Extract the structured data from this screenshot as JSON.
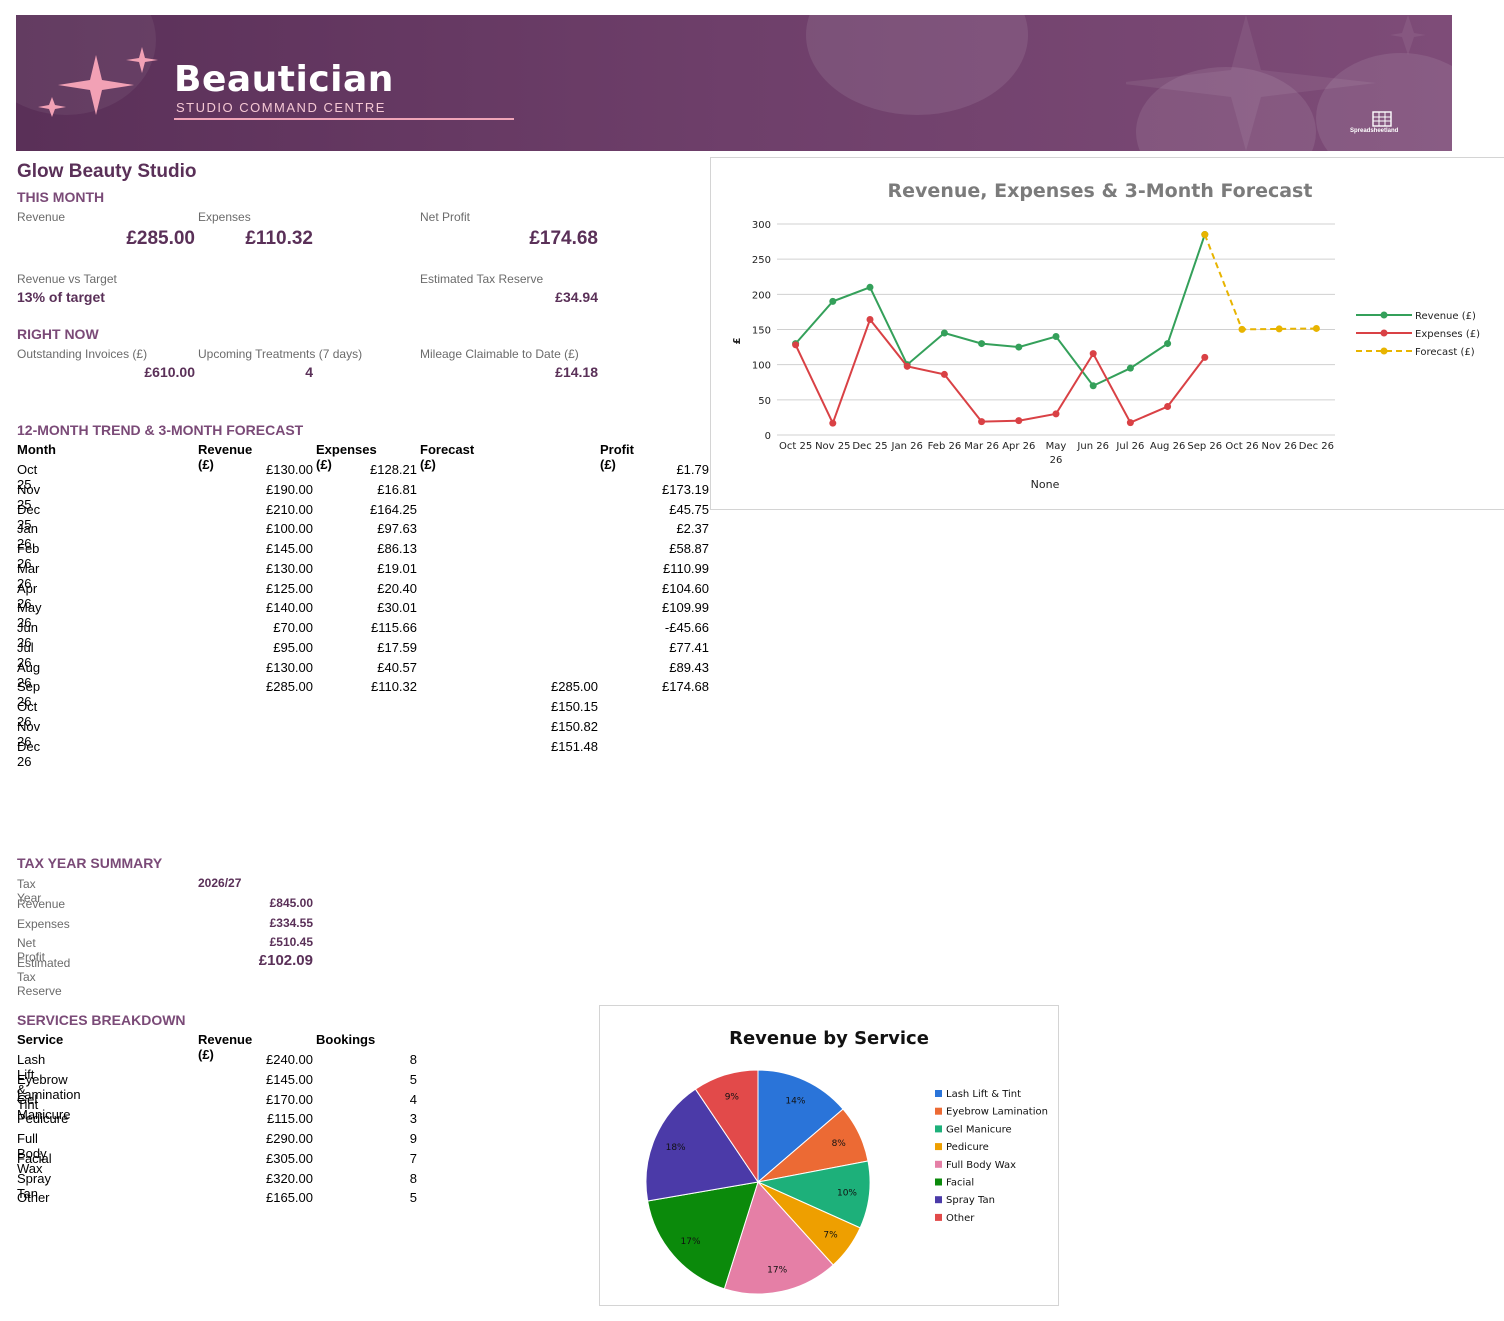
{
  "banner": {
    "title": "Beautician",
    "subtitle": "STUDIO COMMAND CENTRE",
    "logo_text": "Spreadsheetland"
  },
  "studio_name": "Glow Beauty Studio",
  "this_month": {
    "heading": "THIS MONTH",
    "revenue_label": "Revenue",
    "revenue": "£285.00",
    "expenses_label": "Expenses",
    "expenses": "£110.32",
    "net_profit_label": "Net Profit",
    "net_profit": "£174.68",
    "vs_target_label": "Revenue vs Target",
    "vs_target": "13% of target",
    "tax_reserve_label": "Estimated Tax Reserve",
    "tax_reserve": "£34.94"
  },
  "right_now": {
    "heading": "RIGHT NOW",
    "invoices_label": "Outstanding Invoices (£)",
    "invoices": "£610.00",
    "treatments_label": "Upcoming Treatments (7 days)",
    "treatments": "4",
    "mileage_label": "Mileage Claimable to Date (£)",
    "mileage": "£14.18"
  },
  "trend": {
    "heading": "12-MONTH TREND & 3-MONTH FORECAST",
    "columns": [
      "Month",
      "Revenue (£)",
      "Expenses (£)",
      "Forecast (£)",
      "Profit (£)"
    ],
    "rows": [
      [
        "Oct 25",
        "£130.00",
        "£128.21",
        "",
        "£1.79"
      ],
      [
        "Nov 25",
        "£190.00",
        "£16.81",
        "",
        "£173.19"
      ],
      [
        "Dec 25",
        "£210.00",
        "£164.25",
        "",
        "£45.75"
      ],
      [
        "Jan 26",
        "£100.00",
        "£97.63",
        "",
        "£2.37"
      ],
      [
        "Feb 26",
        "£145.00",
        "£86.13",
        "",
        "£58.87"
      ],
      [
        "Mar 26",
        "£130.00",
        "£19.01",
        "",
        "£110.99"
      ],
      [
        "Apr 26",
        "£125.00",
        "£20.40",
        "",
        "£104.60"
      ],
      [
        "May 26",
        "£140.00",
        "£30.01",
        "",
        "£109.99"
      ],
      [
        "Jun 26",
        "£70.00",
        "£115.66",
        "",
        "-£45.66"
      ],
      [
        "Jul 26",
        "£95.00",
        "£17.59",
        "",
        "£77.41"
      ],
      [
        "Aug 26",
        "£130.00",
        "£40.57",
        "",
        "£89.43"
      ],
      [
        "Sep 26",
        "£285.00",
        "£110.32",
        "£285.00",
        "£174.68"
      ],
      [
        "Oct 26",
        "",
        "",
        "£150.15",
        ""
      ],
      [
        "Nov 26",
        "",
        "",
        "£150.82",
        ""
      ],
      [
        "Dec 26",
        "",
        "",
        "£151.48",
        ""
      ]
    ]
  },
  "tax_year": {
    "heading": "TAX YEAR SUMMARY",
    "rows": [
      {
        "label": "Tax Year",
        "value": "2026/27"
      },
      {
        "label": "Revenue",
        "value": "£845.00"
      },
      {
        "label": "Expenses",
        "value": "£334.55"
      },
      {
        "label": "Net Profit",
        "value": "£510.45"
      },
      {
        "label": "Estimated Tax Reserve",
        "value": "£102.09"
      }
    ]
  },
  "services": {
    "heading": "SERVICES BREAKDOWN",
    "columns": [
      "Service",
      "Revenue (£)",
      "Bookings"
    ],
    "rows": [
      [
        "Lash Lift & Tint",
        "£240.00",
        "8"
      ],
      [
        "Eyebrow Lamination",
        "£145.00",
        "5"
      ],
      [
        "Gel Manicure",
        "£170.00",
        "4"
      ],
      [
        "Pedicure",
        "£115.00",
        "3"
      ],
      [
        "Full Body Wax",
        "£290.00",
        "9"
      ],
      [
        "Facial",
        "£305.00",
        "7"
      ],
      [
        "Spray Tan",
        "£320.00",
        "8"
      ],
      [
        "Other",
        "£165.00",
        "5"
      ]
    ]
  },
  "chart_data": [
    {
      "type": "line",
      "title": "Revenue, Expenses & 3-Month Forecast",
      "xlabel": "None",
      "ylabel": "£",
      "ylim": [
        0,
        300
      ],
      "yticks": [
        0,
        50,
        100,
        150,
        200,
        250,
        300
      ],
      "grid": true,
      "legend": "right",
      "categories": [
        "Oct 25",
        "Nov 25",
        "Dec 25",
        "Jan 26",
        "Feb 26",
        "Mar 26",
        "Apr 26",
        "May 26",
        "Jun 26",
        "Jul 26",
        "Aug 26",
        "Sep 26",
        "Oct 26",
        "Nov 26",
        "Dec 26"
      ],
      "series": [
        {
          "name": "Revenue (£)",
          "color": "#34a05a",
          "dashed": false,
          "values": [
            130,
            190,
            210,
            100,
            145,
            130,
            125,
            140,
            70,
            95,
            130,
            285,
            null,
            null,
            null
          ]
        },
        {
          "name": "Expenses (£)",
          "color": "#d94145",
          "dashed": false,
          "values": [
            128.21,
            16.81,
            164.25,
            97.63,
            86.13,
            19.01,
            20.4,
            30.01,
            115.66,
            17.59,
            40.57,
            110.32,
            null,
            null,
            null
          ]
        },
        {
          "name": "Forecast (£)",
          "color": "#e8b400",
          "dashed": true,
          "values": [
            null,
            null,
            null,
            null,
            null,
            null,
            null,
            null,
            null,
            null,
            null,
            285,
            150.15,
            150.82,
            151.48
          ]
        }
      ]
    },
    {
      "type": "pie",
      "title": "Revenue by Service",
      "legend": "right",
      "categories": [
        "Lash Lift & Tint",
        "Eyebrow Lamination",
        "Gel Manicure",
        "Pedicure",
        "Full Body Wax",
        "Facial",
        "Spray Tan",
        "Other"
      ],
      "values": [
        240,
        145,
        170,
        115,
        290,
        305,
        320,
        165
      ],
      "labels": [
        "14%",
        "8%",
        "10%",
        "7%",
        "17%",
        "17%",
        "18%",
        "9%"
      ],
      "colors": [
        "#2a74d9",
        "#ec6a34",
        "#1db07a",
        "#ee9f00",
        "#e57fa6",
        "#0b8a0b",
        "#4b3aa8",
        "#e24a4a"
      ]
    }
  ]
}
